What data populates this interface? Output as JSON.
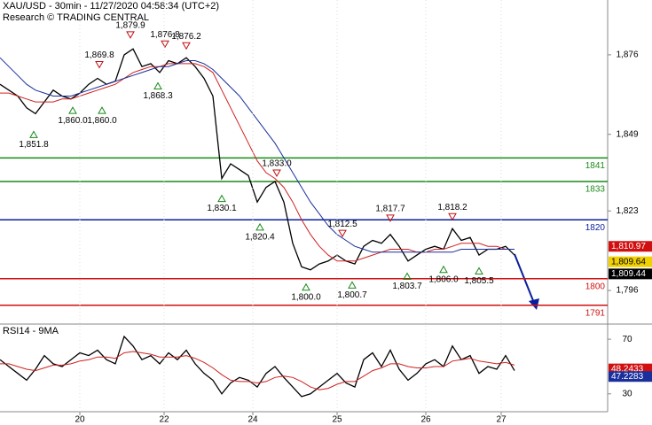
{
  "header": {
    "title": "XAU/USD - 30min - 11/27/2020 04:58:34 (UTC+2)",
    "subtitle": "Research © TRADING CENTRAL"
  },
  "chart_data": [
    {
      "type": "line",
      "x": [
        0,
        2,
        4,
        6,
        8,
        10,
        12,
        14,
        16,
        18,
        20,
        22,
        24,
        26,
        28,
        30,
        32,
        34,
        36,
        38,
        40,
        42,
        44,
        46,
        48,
        50,
        52,
        54,
        56,
        58,
        60,
        62,
        64,
        66,
        68,
        70,
        72,
        74,
        76,
        78,
        80,
        82,
        84,
        86,
        88,
        90,
        92,
        94,
        96,
        98,
        100,
        102,
        104,
        106,
        108,
        110,
        112,
        114,
        116
      ],
      "xlim": [
        0,
        137
      ],
      "xticks": [
        {
          "value": 18,
          "label": "20"
        },
        {
          "value": 37,
          "label": "22"
        },
        {
          "value": 57,
          "label": "24"
        },
        {
          "value": 76,
          "label": "25"
        },
        {
          "value": 96,
          "label": "26"
        },
        {
          "value": 113,
          "label": "27"
        }
      ],
      "ylim": [
        1784.9,
        1894.6
      ],
      "yticks": [
        {
          "value": 1876,
          "label": "1,876"
        },
        {
          "value": 1849,
          "label": "1,849"
        },
        {
          "value": 1823,
          "label": "1,823"
        },
        {
          "value": 1796,
          "label": "1,796"
        }
      ],
      "series": [
        {
          "color": "#000000",
          "values": [
            1866,
            1864,
            1862,
            1858,
            1856,
            1860,
            1864,
            1862,
            1861,
            1863,
            1866,
            1868,
            1866,
            1867,
            1876,
            1878,
            1872,
            1873,
            1870,
            1874,
            1873,
            1875,
            1872,
            1868,
            1862,
            1834,
            1839,
            1837,
            1835,
            1826,
            1831,
            1833,
            1826,
            1812,
            1804,
            1803,
            1805,
            1806,
            1808,
            1806,
            1805,
            1811,
            1813,
            1812,
            1815,
            1811,
            1806,
            1808,
            1810,
            1811,
            1810,
            1817,
            1813,
            1814,
            1808,
            1810,
            1810,
            1811,
            1808
          ]
        },
        {
          "color": "#d02020",
          "values": [
            1863,
            1863,
            1862,
            1861,
            1860,
            1860,
            1860,
            1861,
            1861,
            1862,
            1863,
            1864,
            1865,
            1866,
            1868,
            1870,
            1871,
            1872,
            1872,
            1873,
            1873,
            1873,
            1873,
            1872,
            1870,
            1864,
            1858,
            1852,
            1846,
            1840,
            1836,
            1834,
            1831,
            1826,
            1820,
            1815,
            1811,
            1808,
            1806,
            1806,
            1806,
            1807,
            1808,
            1809,
            1810,
            1810,
            1810,
            1809,
            1809,
            1810,
            1810,
            1811,
            1812,
            1812,
            1812,
            1811,
            1811,
            1810,
            1810
          ]
        },
        {
          "color": "#1a2f9c",
          "values": [
            1875,
            1872,
            1869,
            1866,
            1864,
            1863,
            1862,
            1862,
            1862,
            1863,
            1864,
            1865,
            1866,
            1867,
            1868,
            1869,
            1870,
            1871,
            1872,
            1872,
            1873,
            1874,
            1874,
            1873,
            1871,
            1868,
            1865,
            1862,
            1858,
            1854,
            1850,
            1846,
            1841,
            1836,
            1831,
            1826,
            1822,
            1818,
            1815,
            1813,
            1811,
            1810,
            1809,
            1809,
            1809,
            1809,
            1809,
            1809,
            1809,
            1809,
            1809,
            1809,
            1810,
            1810,
            1810,
            1810,
            1810,
            1810,
            1810
          ]
        }
      ],
      "levels": [
        {
          "value": 1841,
          "color": "#1a8a1a"
        },
        {
          "value": 1833,
          "color": "#1a8a1a"
        },
        {
          "value": 1820,
          "color": "#0a1f9c"
        },
        {
          "value": 1800,
          "color": "#d01010"
        },
        {
          "value": 1791,
          "color": "#d01010"
        }
      ],
      "annotations": [
        {
          "x": 7.6,
          "value": 1851.8,
          "label": "1,851.8",
          "kind": "low"
        },
        {
          "x": 16.4,
          "value": 1860.0,
          "label": "1,860.0",
          "kind": "low"
        },
        {
          "x": 23,
          "value": 1860.0,
          "label": "1,860.0",
          "kind": "low"
        },
        {
          "x": 22.4,
          "value": 1869.8,
          "label": "1,869.8",
          "kind": "high"
        },
        {
          "x": 29.4,
          "value": 1879.9,
          "label": "1,879.9",
          "kind": "high"
        },
        {
          "x": 35.6,
          "value": 1868.3,
          "label": "1,868.3",
          "kind": "low"
        },
        {
          "x": 37.2,
          "value": 1876.8,
          "label": "1,876.8",
          "kind": "high"
        },
        {
          "x": 42,
          "value": 1876.2,
          "label": "1,876.2",
          "kind": "high"
        },
        {
          "x": 50,
          "value": 1830.1,
          "label": "1,830.1",
          "kind": "low"
        },
        {
          "x": 62.4,
          "value": 1833.0,
          "label": "1,833.0",
          "kind": "high"
        },
        {
          "x": 58.6,
          "value": 1820.4,
          "label": "1,820.4",
          "kind": "low"
        },
        {
          "x": 69,
          "value": 1800.0,
          "label": "1,800.0",
          "kind": "low"
        },
        {
          "x": 77.2,
          "value": 1812.5,
          "label": "1,812.5",
          "kind": "high"
        },
        {
          "x": 79.4,
          "value": 1800.7,
          "label": "1,800.7",
          "kind": "low"
        },
        {
          "x": 88,
          "value": 1817.7,
          "label": "1,817.7",
          "kind": "high"
        },
        {
          "x": 91.8,
          "value": 1803.7,
          "label": "1,803.7",
          "kind": "low"
        },
        {
          "x": 102,
          "value": 1818.2,
          "label": "1,818.2",
          "kind": "high"
        },
        {
          "x": 100,
          "value": 1806.0,
          "label": "1,806.0",
          "kind": "low"
        },
        {
          "x": 108,
          "value": 1805.5,
          "label": "1,805.5",
          "kind": "low"
        }
      ],
      "price_tags": [
        {
          "value": 1810.97,
          "label": "1,810.97",
          "color": "#d01010"
        },
        {
          "value": 1809.64,
          "label": "1,809.64",
          "color": "#f0d000"
        },
        {
          "value": 1809.44,
          "label": "1,809.44",
          "color": "#000000"
        }
      ]
    },
    {
      "type": "line",
      "title": "RSI14 - 9MA",
      "ylim": [
        16.9,
        81.1
      ],
      "yticks": [
        70,
        30
      ],
      "series": [
        {
          "color": "#000000",
          "values": [
            55,
            50,
            45,
            40,
            48,
            58,
            52,
            50,
            55,
            60,
            58,
            62,
            55,
            52,
            72,
            65,
            55,
            58,
            52,
            60,
            55,
            62,
            52,
            45,
            40,
            30,
            38,
            42,
            40,
            35,
            45,
            50,
            42,
            35,
            28,
            30,
            35,
            40,
            45,
            38,
            35,
            55,
            60,
            50,
            62,
            48,
            40,
            45,
            52,
            55,
            50,
            65,
            55,
            58,
            45,
            50,
            48,
            58,
            47
          ]
        },
        {
          "color": "#d02020",
          "values": [
            52,
            52,
            50,
            48,
            47,
            49,
            51,
            51,
            52,
            54,
            55,
            57,
            57,
            56,
            60,
            61,
            60,
            59,
            57,
            57,
            57,
            58,
            56,
            53,
            49,
            44,
            40,
            39,
            39,
            38,
            39,
            42,
            43,
            42,
            39,
            35,
            33,
            34,
            37,
            39,
            39,
            43,
            47,
            49,
            52,
            52,
            50,
            49,
            49,
            50,
            50,
            54,
            55,
            56,
            54,
            53,
            52,
            53,
            51
          ]
        }
      ],
      "price_tags": [
        {
          "value": 48.2433,
          "label": "48.2433",
          "color": "#d01010"
        },
        {
          "value": 47.2283,
          "label": "47.2283",
          "color": "#1a2f9c"
        }
      ]
    }
  ]
}
